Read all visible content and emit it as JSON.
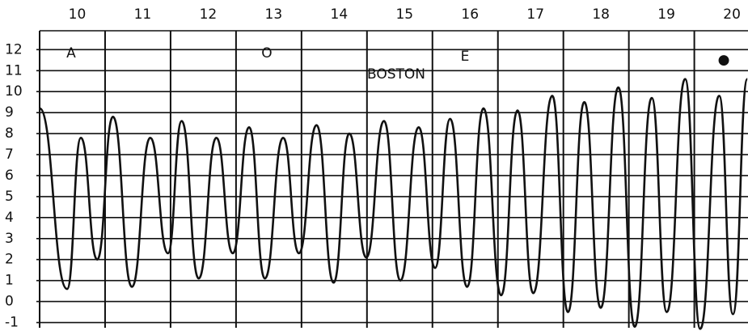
{
  "chart_data": {
    "type": "line",
    "color": "#111111",
    "grid": true,
    "annotations": [
      "A",
      "O",
      "BOSTON",
      "E",
      "●"
    ],
    "xlim": [
      10,
      20.82
    ],
    "xticks": [
      10,
      11,
      12,
      13,
      14,
      15,
      16,
      17,
      18,
      19,
      20
    ],
    "ylim": [
      -1.25,
      12.9
    ],
    "yticks": [
      -1,
      0,
      1,
      2,
      3,
      4,
      5,
      6,
      7,
      8,
      9,
      10,
      11,
      12
    ],
    "x": [
      10.0,
      10.42,
      10.63,
      10.88,
      11.12,
      11.41,
      11.69,
      11.96,
      12.17,
      12.43,
      12.7,
      12.95,
      13.2,
      13.44,
      13.72,
      13.96,
      14.23,
      14.49,
      14.73,
      14.99,
      15.26,
      15.51,
      15.79,
      16.04,
      16.27,
      16.53,
      16.78,
      17.05,
      17.3,
      17.54,
      17.83,
      18.07,
      18.32,
      18.57,
      18.84,
      19.09,
      19.35,
      19.58,
      19.86,
      20.09,
      20.38,
      20.59,
      20.81
    ],
    "values": [
      9.2,
      0.6,
      7.8,
      2.0,
      8.8,
      0.7,
      7.8,
      2.3,
      8.6,
      1.1,
      7.8,
      2.3,
      8.3,
      1.1,
      7.8,
      2.3,
      8.4,
      0.9,
      8.0,
      2.1,
      8.6,
      1.0,
      8.3,
      1.6,
      8.7,
      0.7,
      9.2,
      0.3,
      9.1,
      0.4,
      9.8,
      -0.5,
      9.5,
      -0.3,
      10.2,
      -1.2,
      9.7,
      -0.5,
      10.6,
      -1.3,
      9.8,
      -0.6,
      10.6
    ]
  }
}
